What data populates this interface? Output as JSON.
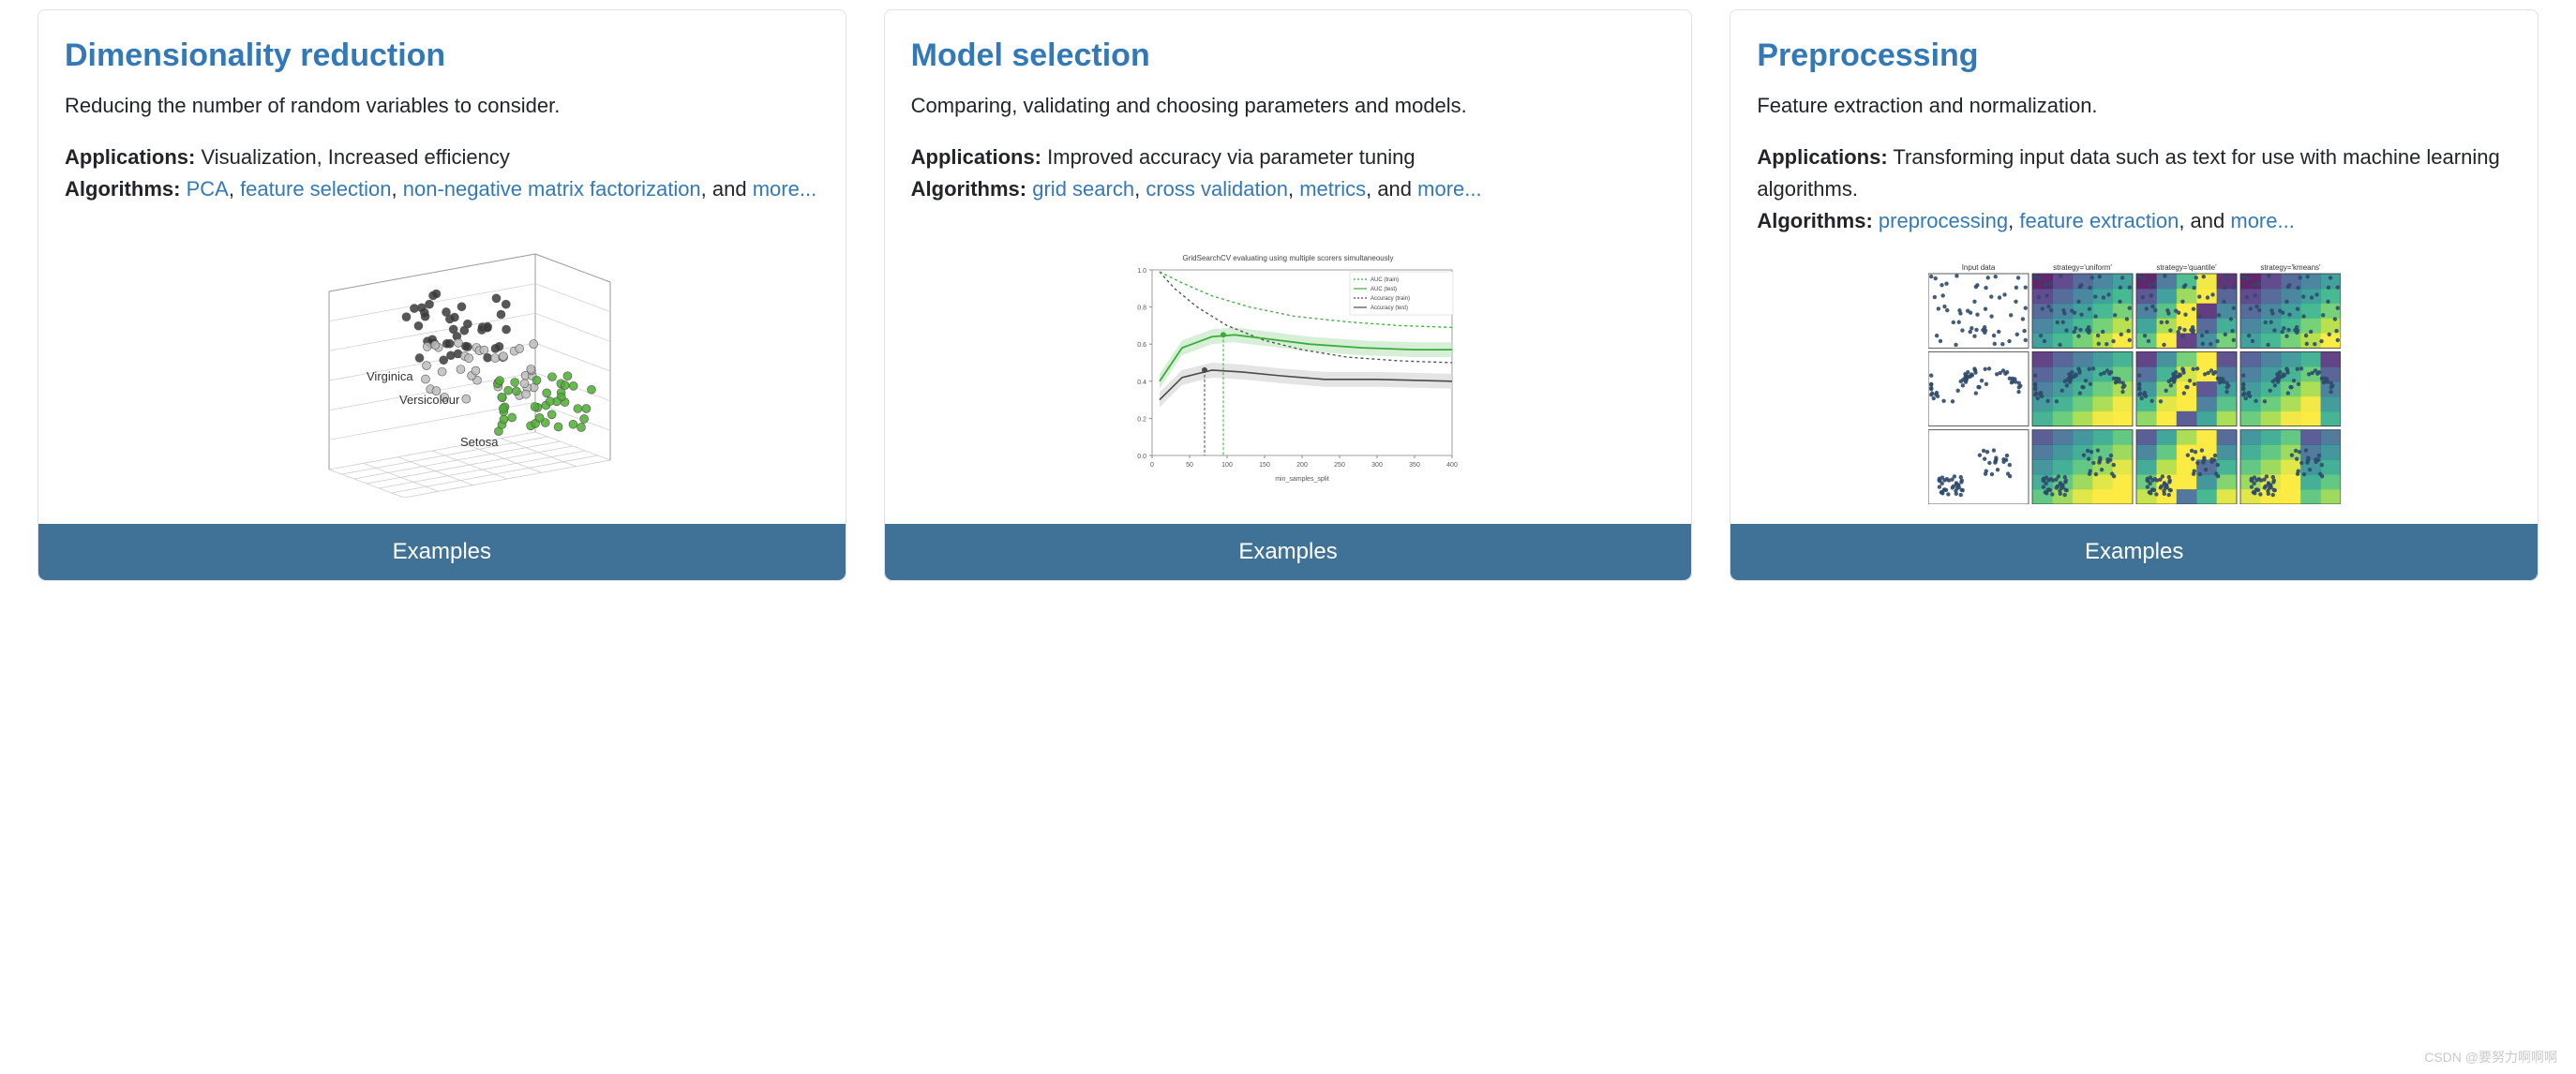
{
  "accent_color": "#3379b7",
  "button_bg": "#3f7296",
  "card_border": "#dee2e6",
  "text_color": "#212529",
  "watermark": "CSDN @要努力啊啊啊",
  "cards": [
    {
      "title": "Dimensionality reduction",
      "description": "Reducing the number of random variables to consider.",
      "applications_label": "Applications:",
      "applications_text": " Visualization, Increased efficiency",
      "algorithms_label": "Algorithms:",
      "alg_links": [
        "PCA",
        "feature selection",
        "non-negative matrix factorization"
      ],
      "and_text": ", and ",
      "more_text": "more...",
      "button": "Examples",
      "thumb": {
        "type": "3d-scatter",
        "labels": [
          "Virginica",
          "Versicolour",
          "Setosa"
        ],
        "label_fontsize": 13,
        "clusters": [
          {
            "color": "#3a3a3a",
            "cx_range": [
              150,
              260
            ],
            "cy_range": [
              60,
              135
            ],
            "n": 40
          },
          {
            "color": "#bdbdbd",
            "cx_range": [
              170,
              290
            ],
            "cy_range": [
              110,
              175
            ],
            "n": 40
          },
          {
            "color": "#4caf2f",
            "cx_range": [
              245,
              350
            ],
            "cy_range": [
              150,
              215
            ],
            "n": 40
          }
        ],
        "grid_color": "#cccccc",
        "axis_color": "#999999",
        "point_r": 4.5,
        "point_stroke": "#555555"
      }
    },
    {
      "title": "Model selection",
      "description": "Comparing, validating and choosing parameters and models.",
      "applications_label": "Applications:",
      "applications_text": " Improved accuracy via parameter tuning",
      "algorithms_label": "Algorithms:",
      "alg_links": [
        "grid search",
        "cross validation",
        "metrics"
      ],
      "and_text": ", and ",
      "more_text": "more...",
      "button": "Examples",
      "thumb": {
        "type": "line-chart",
        "title": "GridSearchCV evaluating using multiple scorers simultaneously",
        "title_fontsize": 8,
        "xlabel": "min_samples_split",
        "xlim": [
          0,
          400
        ],
        "ylim": [
          0,
          1
        ],
        "xticks": [
          0,
          50,
          100,
          150,
          200,
          250,
          300,
          350,
          400
        ],
        "yticks": [
          0.0,
          0.2,
          0.4,
          0.6,
          0.8,
          1.0
        ],
        "grid_color": "#eeeeee",
        "axis_color": "#888888",
        "legend": [
          "AUC (train)",
          "AUC (test)",
          "Accuracy (train)",
          "Accuracy (test)"
        ],
        "legend_fontsize": 6,
        "vmark_x": 95,
        "vmark_y": 0.65,
        "series": [
          {
            "color": "#4a4a4a",
            "width": 1.3,
            "dash": "3,3",
            "band": null,
            "pts": [
              [
                10,
                0.99
              ],
              [
                30,
                0.9
              ],
              [
                60,
                0.8
              ],
              [
                100,
                0.7
              ],
              [
                150,
                0.62
              ],
              [
                200,
                0.57
              ],
              [
                260,
                0.53
              ],
              [
                330,
                0.51
              ],
              [
                400,
                0.5
              ]
            ]
          },
          {
            "color": "#4a4a4a",
            "width": 1.6,
            "dash": null,
            "band": "#d8d8d8",
            "pts": [
              [
                10,
                0.3
              ],
              [
                40,
                0.42
              ],
              [
                80,
                0.46
              ],
              [
                120,
                0.45
              ],
              [
                170,
                0.43
              ],
              [
                230,
                0.41
              ],
              [
                300,
                0.41
              ],
              [
                400,
                0.4
              ]
            ]
          },
          {
            "color": "#3aad3a",
            "width": 1.3,
            "dash": "3,3",
            "band": null,
            "pts": [
              [
                10,
                0.99
              ],
              [
                40,
                0.93
              ],
              [
                80,
                0.86
              ],
              [
                130,
                0.8
              ],
              [
                190,
                0.75
              ],
              [
                260,
                0.72
              ],
              [
                330,
                0.7
              ],
              [
                400,
                0.69
              ]
            ]
          },
          {
            "color": "#3aad3a",
            "width": 1.8,
            "dash": null,
            "band": "#c5e8c5",
            "pts": [
              [
                10,
                0.4
              ],
              [
                40,
                0.58
              ],
              [
                80,
                0.64
              ],
              [
                110,
                0.65
              ],
              [
                150,
                0.63
              ],
              [
                210,
                0.6
              ],
              [
                280,
                0.58
              ],
              [
                350,
                0.57
              ],
              [
                400,
                0.57
              ]
            ]
          }
        ]
      }
    },
    {
      "title": "Preprocessing",
      "description": "Feature extraction and normalization.",
      "applications_label": "Applications:",
      "applications_text": " Transforming input data such as text for use with machine learning algorithms.",
      "algorithms_label": "Algorithms:",
      "alg_links": [
        "preprocessing",
        "feature extraction"
      ],
      "and_text": ", and ",
      "more_text": "more...",
      "button": "Examples",
      "thumb": {
        "type": "grid-panels",
        "col_titles": [
          "Input data",
          "strategy='uniform'",
          "strategy='quantile'",
          "strategy='kmeans'"
        ],
        "title_fontsize": 8,
        "rows": 3,
        "cols": 4,
        "panel_border": "#333333",
        "point_color": "#2f4a6b",
        "point_r": 2.2,
        "viridis": [
          "#440154",
          "#472c7a",
          "#3b528b",
          "#2c728e",
          "#21918c",
          "#28ae80",
          "#5ec962",
          "#addc30",
          "#fde725"
        ],
        "heat_alpha": 0.85,
        "n_points": 55
      }
    }
  ]
}
